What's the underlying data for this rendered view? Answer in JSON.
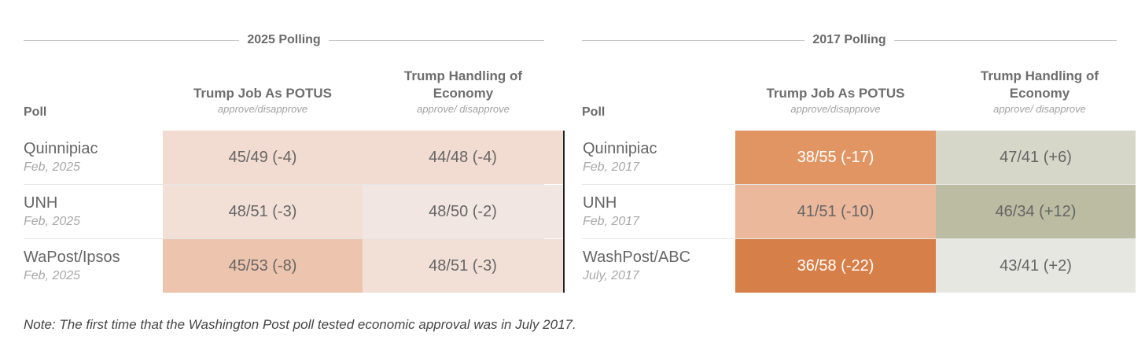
{
  "groups": [
    {
      "title": "2025 Polling",
      "col_poll": "Poll",
      "columns": [
        {
          "title": "Trump Job As POTUS",
          "subtitle": "approve/disapprove"
        },
        {
          "title": "Trump Handling of Economy",
          "subtitle": "approve/ disapprove"
        }
      ],
      "rows": [
        {
          "poll": "Quinnipiac",
          "date": "Feb, 2025",
          "values": [
            "45/49 (-4)",
            "44/48 (-4)"
          ],
          "colors": [
            "#f2dcd1",
            "#f2dcd1"
          ]
        },
        {
          "poll": "UNH",
          "date": "Feb, 2025",
          "values": [
            "48/51 (-3)",
            "48/50 (-2)"
          ],
          "colors": [
            "#f2e0d7",
            "#f1e6e1"
          ]
        },
        {
          "poll": "WaPost/Ipsos",
          "date": "Feb, 2025",
          "values": [
            "45/53 (-8)",
            "48/51 (-3)"
          ],
          "colors": [
            "#edc5ae",
            "#f2e0d7"
          ]
        }
      ]
    },
    {
      "title": "2017 Polling",
      "col_poll": "Poll",
      "columns": [
        {
          "title": "Trump Job As POTUS",
          "subtitle": "approve/disapprove"
        },
        {
          "title": "Trump Handling of Economy",
          "subtitle": "approve/ disapprove"
        }
      ],
      "rows": [
        {
          "poll": "Quinnipiac",
          "date": "Feb, 2017",
          "values": [
            "38/55 (-17)",
            "47/41 (+6)"
          ],
          "colors": [
            "#e09563",
            "#d7d7c9"
          ]
        },
        {
          "poll": "UNH",
          "date": "Feb, 2017",
          "values": [
            "41/51 (-10)",
            "46/34 (+12)"
          ],
          "colors": [
            "#ebb89b",
            "#bbbca2"
          ]
        },
        {
          "poll": "WashPost/ABC",
          "date": "July, 2017",
          "values": [
            "36/58 (-22)",
            "43/41 (+2)"
          ],
          "colors": [
            "#d77f48",
            "#e7e7e1"
          ]
        }
      ]
    }
  ],
  "note": "Note: The first time that the Washington Post poll tested economic approval was in July 2017."
}
